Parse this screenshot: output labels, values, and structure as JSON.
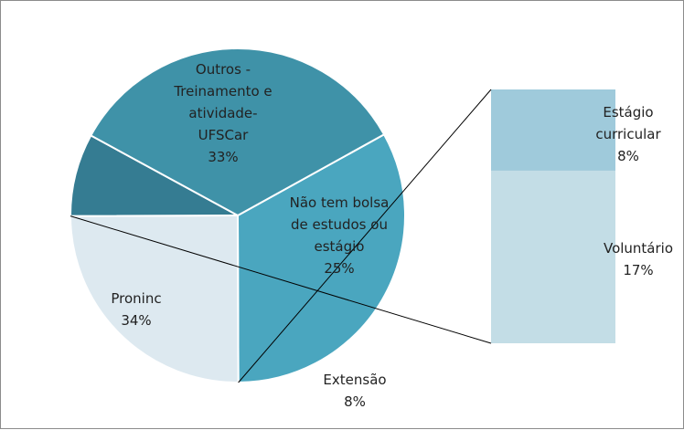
{
  "chart_data": {
    "type": "bar-of-pie",
    "pie": [
      {
        "label_lines": [
          "Outros -",
          "Treinamento e",
          "atividade-",
          "UFSCar"
        ],
        "pct_text": "33%",
        "value": 33,
        "color": "#4aa6bf"
      },
      {
        "label_lines": [
          "Não tem bolsa",
          "de estudos ou",
          "estágio"
        ],
        "pct_text": "25%",
        "value": 25,
        "color": "#dde9f0"
      },
      {
        "label_lines": [
          "Extensão"
        ],
        "pct_text": "8%",
        "value": 8,
        "color": "#357c92"
      },
      {
        "label_lines": [
          "Proninc"
        ],
        "pct_text": "34%",
        "value": 34,
        "color": "#3f92a8"
      }
    ],
    "bar": [
      {
        "label_lines": [
          "Estágio",
          "curricular"
        ],
        "pct_text": "8%",
        "value": 8,
        "color": "#9fcadb"
      },
      {
        "label_lines": [
          "Voluntário"
        ],
        "pct_text": "17%",
        "value": 17,
        "color": "#c3dde6"
      }
    ]
  }
}
